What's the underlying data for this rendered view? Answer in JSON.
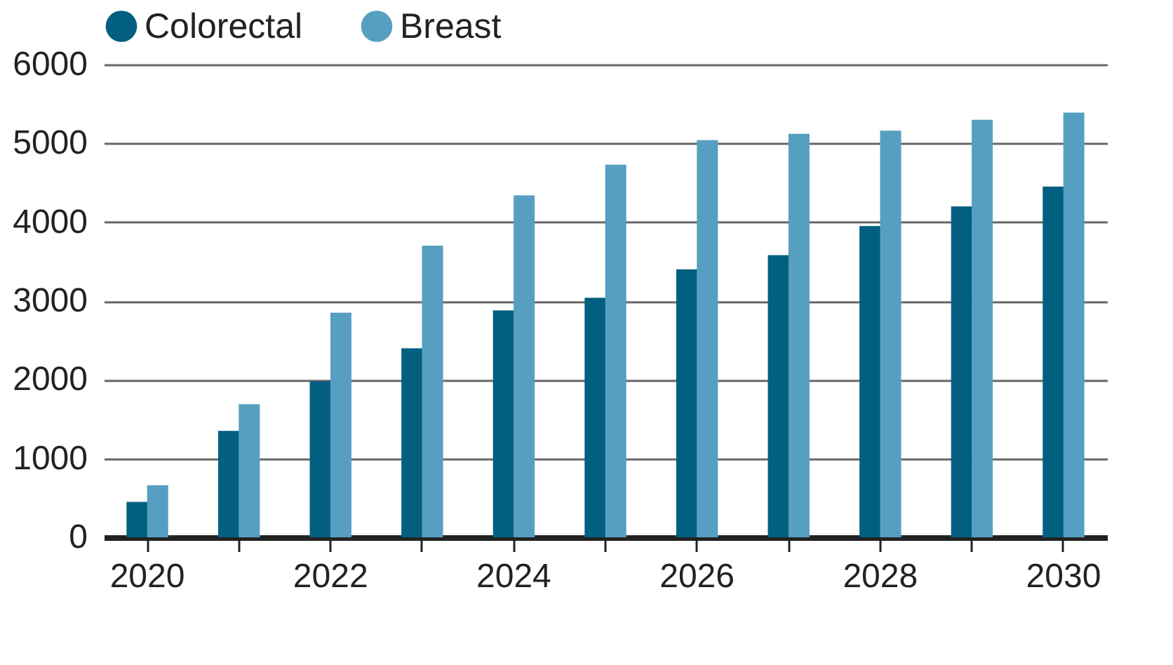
{
  "chart_data": {
    "type": "bar",
    "categories": [
      "2020",
      null,
      "2022",
      null,
      "2024",
      null,
      "2026",
      null,
      "2028",
      null,
      "2030"
    ],
    "series": [
      {
        "name": "Colorectal",
        "color": "#035f7f",
        "values": [
          450,
          1350,
          1980,
          2400,
          2880,
          3040,
          3400,
          3580,
          3950,
          4200,
          4450
        ]
      },
      {
        "name": "Breast",
        "color": "#569fc0",
        "values": [
          660,
          1690,
          2850,
          3700,
          4340,
          4730,
          5040,
          5120,
          5160,
          5300,
          5390
        ]
      }
    ],
    "ylim": [
      0,
      6000
    ],
    "yticks": [
      0,
      1000,
      2000,
      3000,
      4000,
      5000,
      6000
    ],
    "grid": "y",
    "legend": "top left"
  }
}
